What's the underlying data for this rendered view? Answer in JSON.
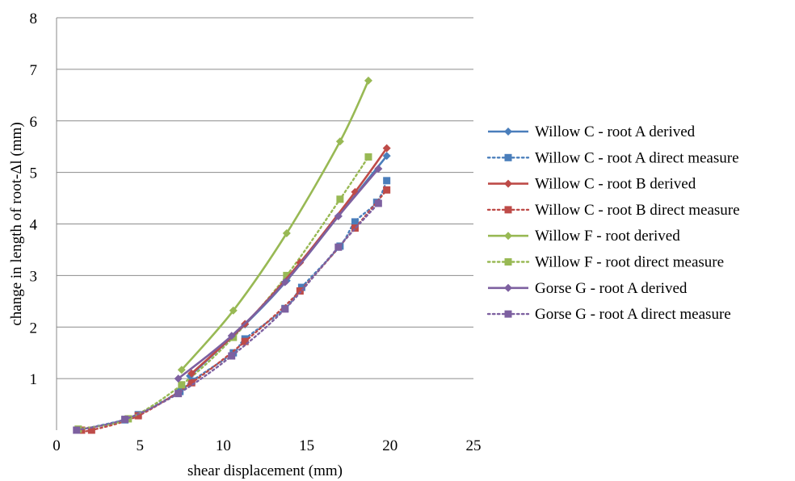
{
  "chart_data": {
    "type": "line",
    "title": "",
    "xlabel": "shear displacement (mm)",
    "ylabel": "change in length of root-Δl (mm)",
    "xlim": [
      0,
      25
    ],
    "ylim": [
      0,
      8
    ],
    "x_ticks": [
      "0",
      "5",
      "10",
      "15",
      "20",
      "25"
    ],
    "y_ticks": [
      "1",
      "2",
      "3",
      "4",
      "5",
      "6",
      "7",
      "8"
    ],
    "grid": "horizontal",
    "legend_position": "right",
    "series": [
      {
        "name": "Willow C - root A derived",
        "color": "#4a7ebb",
        "line_style": "solid",
        "marker": "diamond",
        "points": [
          [
            8.0,
            1.05
          ],
          [
            11.3,
            2.05
          ],
          [
            13.8,
            2.9
          ],
          [
            16.9,
            4.15
          ],
          [
            19.8,
            5.32
          ]
        ]
      },
      {
        "name": "Willow C - root A direct measure",
        "color": "#4a7ebb",
        "line_style": "dotted",
        "marker": "square",
        "points": [
          [
            1.3,
            0.0
          ],
          [
            4.1,
            0.2
          ],
          [
            4.9,
            0.3
          ],
          [
            7.4,
            0.75
          ],
          [
            8.1,
            0.95
          ],
          [
            10.6,
            1.5
          ],
          [
            11.3,
            1.77
          ],
          [
            13.7,
            2.36
          ],
          [
            14.7,
            2.77
          ],
          [
            17.0,
            3.57
          ],
          [
            17.9,
            4.04
          ],
          [
            19.2,
            4.42
          ],
          [
            19.8,
            4.84
          ]
        ]
      },
      {
        "name": "Willow C - root B derived",
        "color": "#be4b48",
        "line_style": "solid",
        "marker": "diamond",
        "points": [
          [
            8.1,
            1.1
          ],
          [
            11.3,
            2.06
          ],
          [
            14.6,
            3.25
          ],
          [
            17.9,
            4.62
          ],
          [
            19.8,
            5.47
          ]
        ]
      },
      {
        "name": "Willow C - root B direct measure",
        "color": "#be4b48",
        "line_style": "dotted",
        "marker": "square",
        "points": [
          [
            1.5,
            0.0
          ],
          [
            2.1,
            0.0
          ],
          [
            4.9,
            0.28
          ],
          [
            8.1,
            0.92
          ],
          [
            11.3,
            1.72
          ],
          [
            14.6,
            2.7
          ],
          [
            17.9,
            3.92
          ],
          [
            19.8,
            4.66
          ]
        ]
      },
      {
        "name": "Willow F - root derived",
        "color": "#98b954",
        "line_style": "solid",
        "marker": "diamond",
        "points": [
          [
            7.5,
            1.17
          ],
          [
            10.6,
            2.32
          ],
          [
            13.8,
            3.82
          ],
          [
            17.0,
            5.6
          ],
          [
            18.7,
            6.78
          ]
        ]
      },
      {
        "name": "Willow F - root direct measure",
        "color": "#98b954",
        "line_style": "dotted",
        "marker": "square",
        "points": [
          [
            1.3,
            0.02
          ],
          [
            4.3,
            0.22
          ],
          [
            7.5,
            0.88
          ],
          [
            10.6,
            1.8
          ],
          [
            13.8,
            3.0
          ],
          [
            17.0,
            4.48
          ],
          [
            18.7,
            5.3
          ]
        ]
      },
      {
        "name": "Gorse G - root A derived",
        "color": "#7d60a0",
        "line_style": "solid",
        "marker": "diamond",
        "points": [
          [
            7.3,
            1.0
          ],
          [
            10.5,
            1.83
          ],
          [
            13.7,
            2.87
          ],
          [
            16.9,
            4.15
          ],
          [
            19.3,
            5.07
          ]
        ]
      },
      {
        "name": "Gorse G - root A direct measure",
        "color": "#7d60a0",
        "line_style": "dotted",
        "marker": "square",
        "points": [
          [
            1.2,
            0.0
          ],
          [
            4.1,
            0.21
          ],
          [
            7.3,
            0.71
          ],
          [
            10.5,
            1.44
          ],
          [
            13.7,
            2.35
          ],
          [
            16.9,
            3.55
          ],
          [
            19.3,
            4.4
          ]
        ]
      }
    ]
  }
}
